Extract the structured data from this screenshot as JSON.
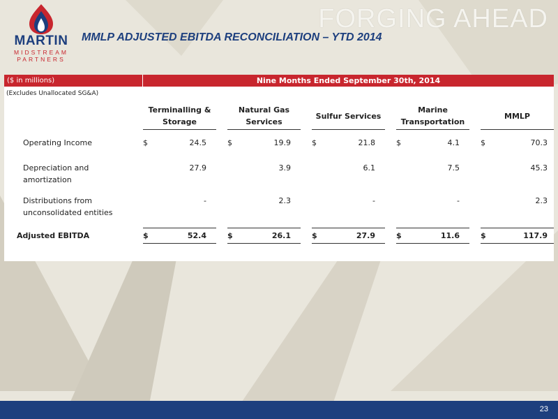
{
  "header": {
    "logo": {
      "name": "MARTIN",
      "line1": "MIDSTREAM",
      "line2": "PARTNERS"
    },
    "tagline": "FORGING AHEAD",
    "title": "MMLP ADJUSTED EBITDA RECONCILIATION – YTD 2014"
  },
  "table": {
    "units": "($ in millions)",
    "period": "Nine Months Ended September 30th, 2014",
    "note": "(Excludes Unallocated SG&A)",
    "columns": [
      [
        "Terminalling &",
        "Storage"
      ],
      [
        "Natural Gas",
        "Services"
      ],
      [
        "Sulfur Services"
      ],
      [
        "Marine",
        "Transportation"
      ],
      [
        "MMLP"
      ]
    ],
    "currency": "$",
    "rows": [
      {
        "label": [
          "Operating Income"
        ],
        "values": [
          "24.5",
          "19.9",
          "21.8",
          "4.1",
          "70.3"
        ],
        "dollar": true
      },
      {
        "label": [
          "Depreciation and",
          "amortization"
        ],
        "values": [
          "27.9",
          "3.9",
          "6.1",
          "7.5",
          "45.3"
        ],
        "dollar": false
      },
      {
        "label": [
          "Distributions from",
          "unconsolidated entities"
        ],
        "values": [
          "-",
          "2.3",
          "-",
          "-",
          "2.3"
        ],
        "dollar": false
      },
      {
        "label": [
          "Adjusted EBITDA"
        ],
        "values": [
          "52.4",
          "26.1",
          "27.9",
          "11.6",
          "117.9"
        ],
        "dollar": true,
        "bold": true
      }
    ]
  },
  "footer": {
    "page_number": "23"
  },
  "colors": {
    "brand_blue": "#1d3f7e",
    "brand_red": "#c8262e",
    "background": "#e9e6dc"
  }
}
